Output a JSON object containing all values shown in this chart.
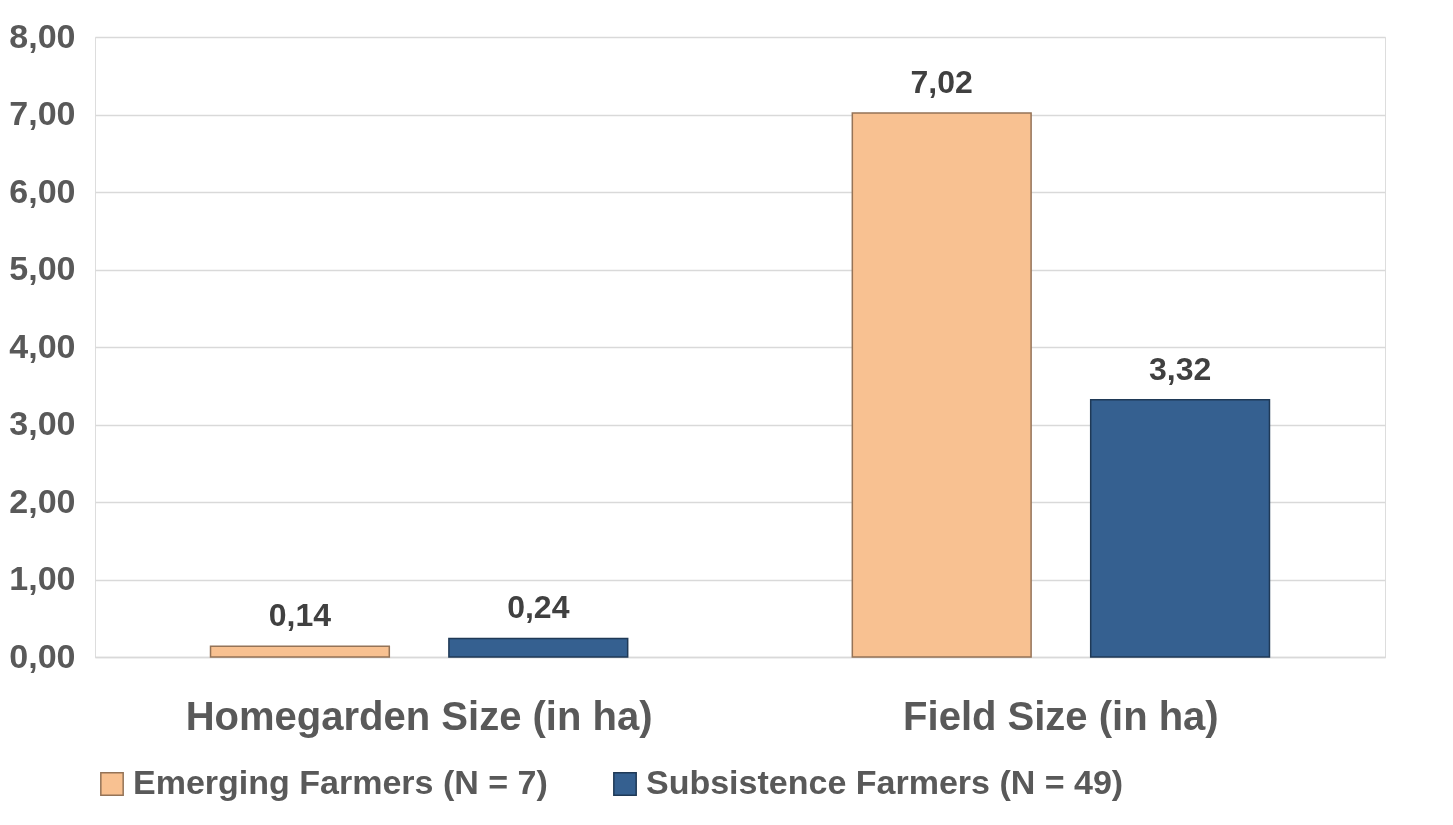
{
  "chart_data": {
    "type": "bar",
    "categories": [
      "Homegarden Size (in ha)",
      "Field Size (in ha)"
    ],
    "series": [
      {
        "name": "Emerging Farmers (N = 7)",
        "color": "#f8c191",
        "values": [
          0.14,
          7.02
        ],
        "value_labels": [
          "0,14",
          "7,02"
        ]
      },
      {
        "name": "Subsistence Farmers (N = 49)",
        "color": "#356090",
        "values": [
          0.24,
          3.32
        ],
        "value_labels": [
          "0,24",
          "3,32"
        ]
      }
    ],
    "ylim": [
      0,
      8
    ],
    "yticks": [
      {
        "value": 0,
        "label": "0,00"
      },
      {
        "value": 1,
        "label": "1,00"
      },
      {
        "value": 2,
        "label": "2,00"
      },
      {
        "value": 3,
        "label": "3,00"
      },
      {
        "value": 4,
        "label": "4,00"
      },
      {
        "value": 5,
        "label": "5,00"
      },
      {
        "value": 6,
        "label": "6,00"
      },
      {
        "value": 7,
        "label": "7,00"
      },
      {
        "value": 8,
        "label": "8,00"
      }
    ],
    "grid": "y",
    "legend": "bottom"
  }
}
